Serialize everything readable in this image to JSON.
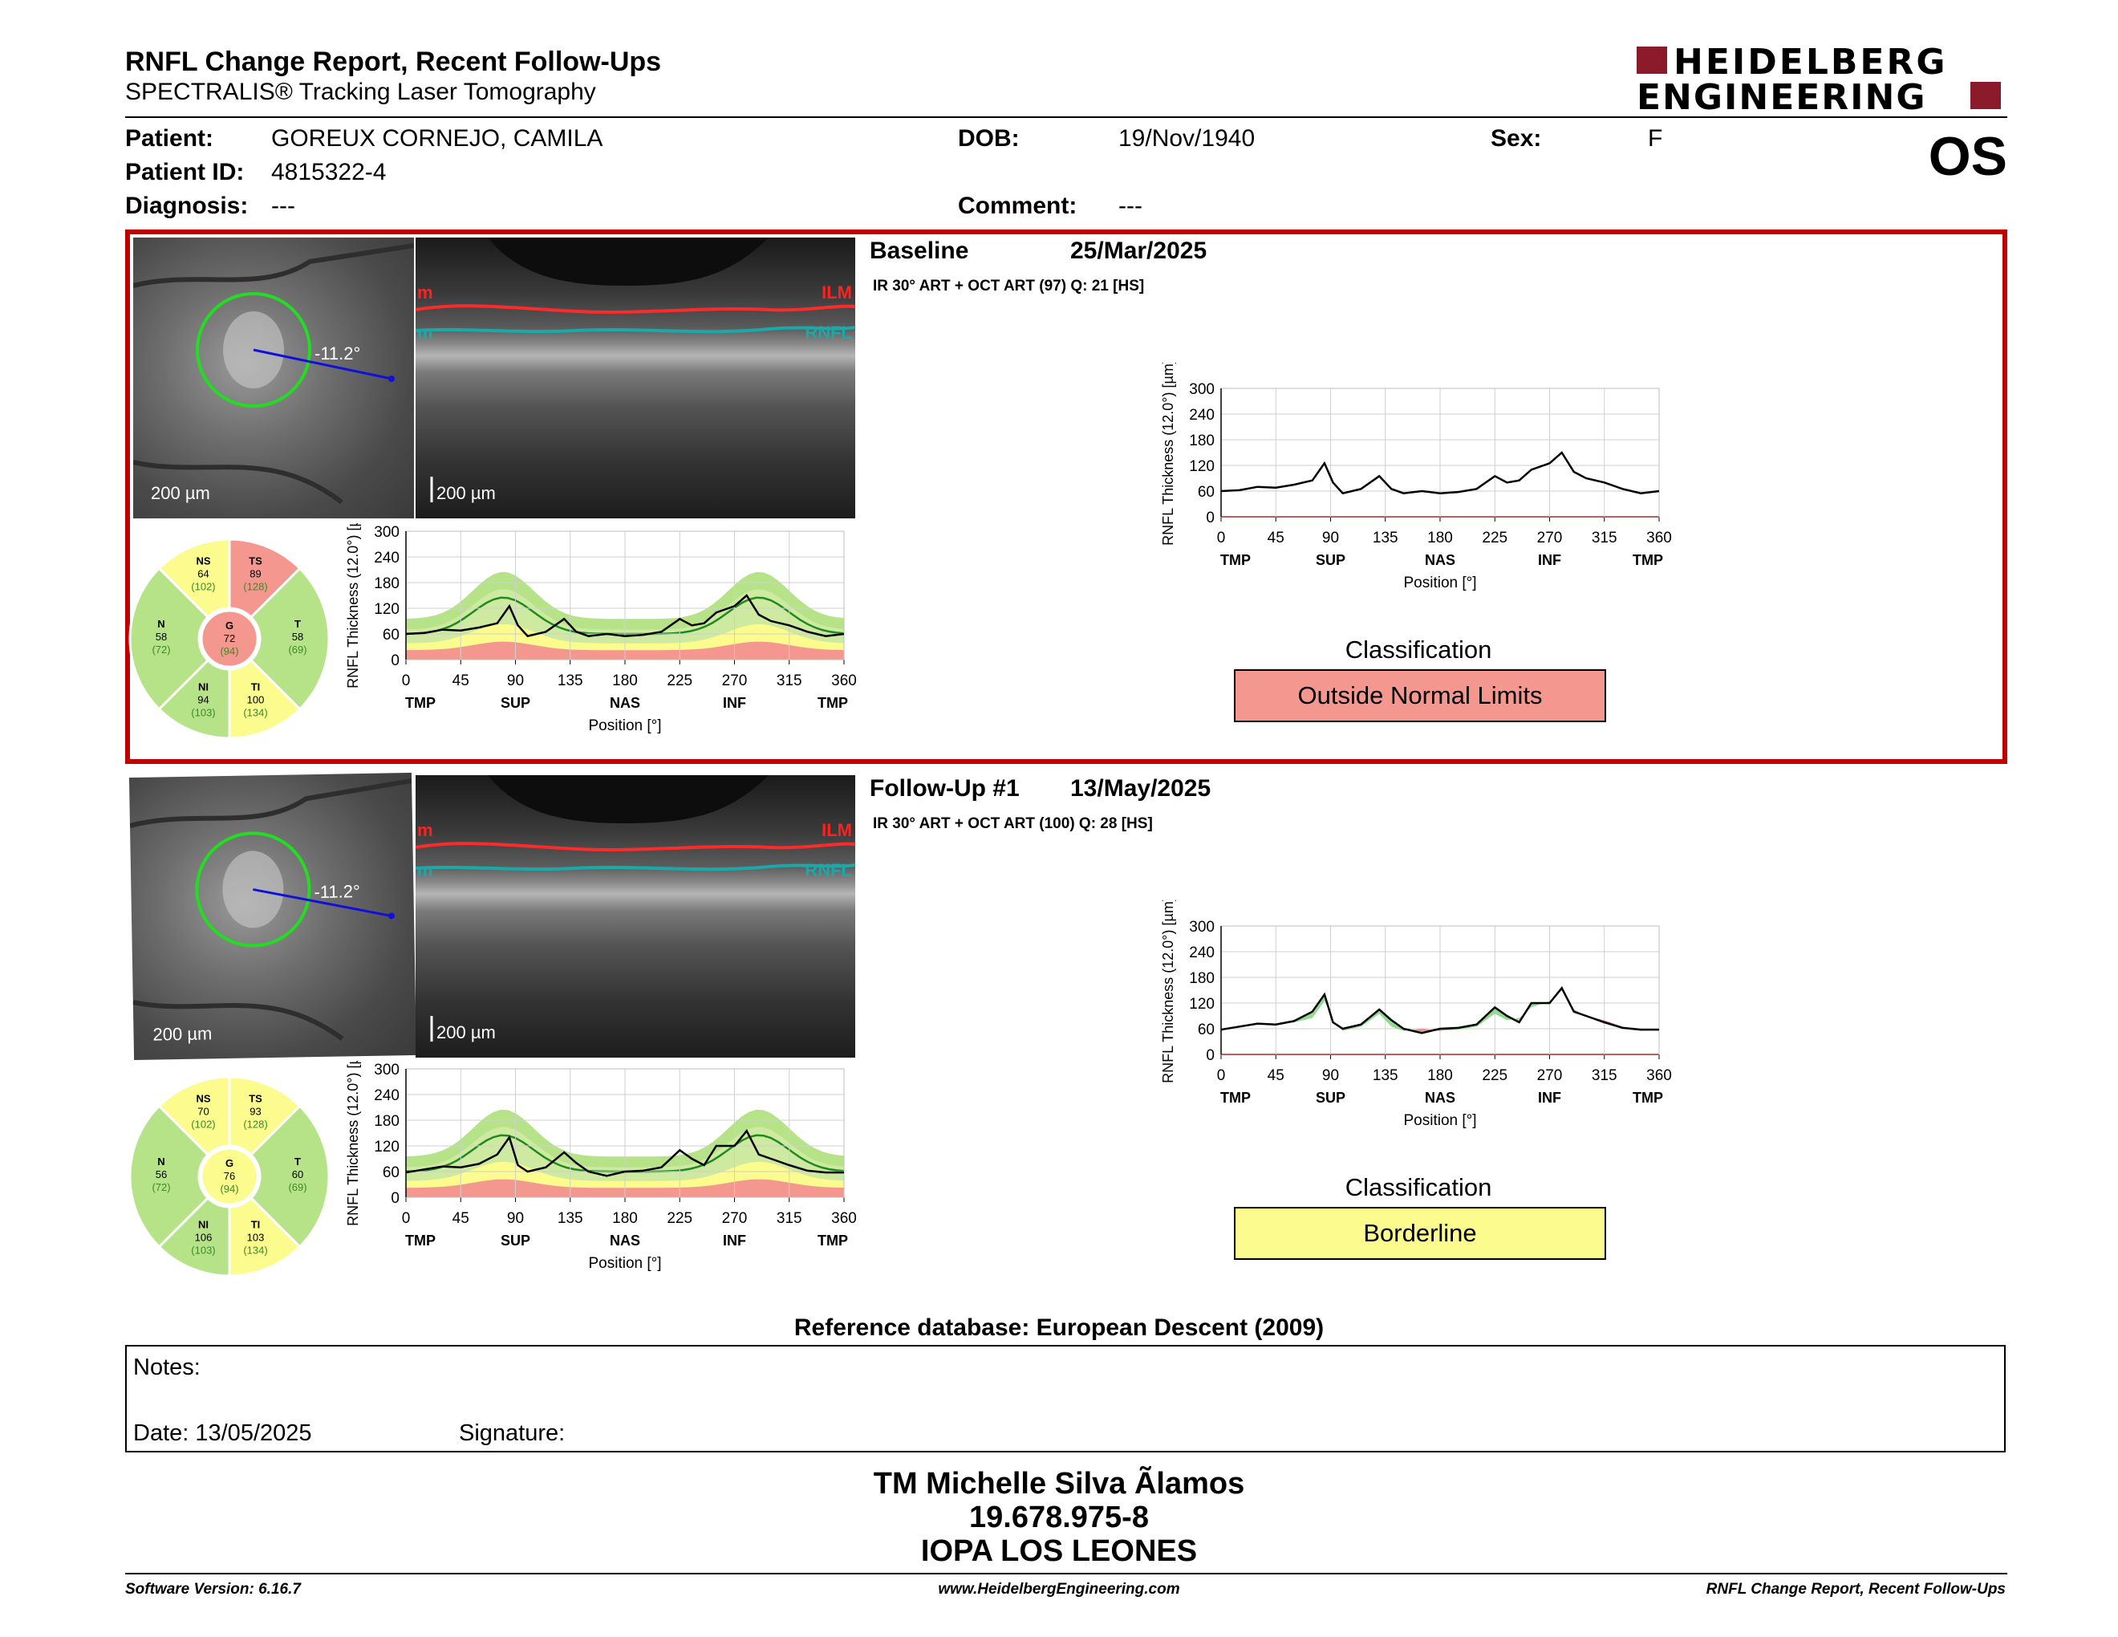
{
  "header": {
    "title": "RNFL Change Report, Recent Follow-Ups",
    "subtitle": "SPECTRALIS® Tracking Laser Tomography",
    "logo_line1": "HEIDELBERG",
    "logo_line2": "ENGINEERING",
    "brand_color": "#8b1a2b"
  },
  "patient": {
    "patient_label": "Patient:",
    "patient_value": "GOREUX CORNEJO, CAMILA",
    "id_label": "Patient ID:",
    "id_value": "4815322-4",
    "diagnosis_label": "Diagnosis:",
    "diagnosis_value": "---",
    "dob_label": "DOB:",
    "dob_value": "19/Nov/1940",
    "comment_label": "Comment:",
    "comment_value": "---",
    "sex_label": "Sex:",
    "sex_value": "F",
    "eye": "OS"
  },
  "exams": [
    {
      "name": "Baseline",
      "date": "25/Mar/2025",
      "scan_info": "IR 30° ART + OCT ART (97) Q: 21 [HS]",
      "angle": "-11.2°",
      "scale_fundus": "200 µm",
      "scale_bscan": "200 µm",
      "ilm": "ILM",
      "rnfl": "RNFL",
      "edge_red": "m",
      "edge_teal": "m",
      "classification_label": "Classification",
      "classification": "Outside Normal Limits",
      "classification_color": "#f4978e",
      "sectors": [
        {
          "name": "NS",
          "value": "64",
          "ref": "(102)",
          "status": "yellow"
        },
        {
          "name": "TS",
          "value": "89",
          "ref": "(128)",
          "status": "red"
        },
        {
          "name": "N",
          "value": "58",
          "ref": "(72)",
          "status": "green"
        },
        {
          "name": "G",
          "value": "72",
          "ref": "(94)",
          "status": "red"
        },
        {
          "name": "T",
          "value": "58",
          "ref": "(69)",
          "status": "green"
        },
        {
          "name": "NI",
          "value": "94",
          "ref": "(103)",
          "status": "green"
        },
        {
          "name": "TI",
          "value": "100",
          "ref": "(134)",
          "status": "yellow"
        }
      ]
    },
    {
      "name": "Follow-Up #1",
      "date": "13/May/2025",
      "scan_info": "IR 30° ART + OCT ART (100) Q: 28 [HS]",
      "angle": "-11.2°",
      "scale_fundus": "200 µm",
      "scale_bscan": "200 µm",
      "ilm": "ILM",
      "rnfl": "RNFL",
      "edge_red": "m",
      "edge_teal": "m",
      "classification_label": "Classification",
      "classification": "Borderline",
      "classification_color": "#fbfb8e",
      "sectors": [
        {
          "name": "NS",
          "value": "70",
          "ref": "(102)",
          "status": "yellow"
        },
        {
          "name": "TS",
          "value": "93",
          "ref": "(128)",
          "status": "yellow"
        },
        {
          "name": "N",
          "value": "56",
          "ref": "(72)",
          "status": "green"
        },
        {
          "name": "G",
          "value": "76",
          "ref": "(94)",
          "status": "yellow"
        },
        {
          "name": "T",
          "value": "60",
          "ref": "(69)",
          "status": "green"
        },
        {
          "name": "NI",
          "value": "106",
          "ref": "(103)",
          "status": "green"
        },
        {
          "name": "TI",
          "value": "103",
          "ref": "(134)",
          "status": "yellow"
        }
      ]
    }
  ],
  "chart_axes": {
    "ylabel": "RNFL Thickness (12.0°) [µm]",
    "xlabel": "Position [°]",
    "yticks": [
      "300",
      "240",
      "180",
      "120",
      "60",
      "0"
    ],
    "xticks": [
      "0",
      "45",
      "90",
      "135",
      "180",
      "225",
      "270",
      "315",
      "360"
    ],
    "xregions": [
      "TMP",
      "SUP",
      "NAS",
      "INF",
      "TMP"
    ]
  },
  "chart_data": [
    {
      "type": "line",
      "ylabel": "RNFL Thickness (12.0°) [µm]",
      "xlabel": "Position [°]",
      "ylim": [
        0,
        300
      ],
      "xlim": [
        0,
        360
      ],
      "x": [
        0,
        15,
        30,
        45,
        60,
        75,
        85,
        92,
        100,
        115,
        130,
        140,
        150,
        165,
        180,
        195,
        210,
        225,
        235,
        245,
        255,
        270,
        280,
        290,
        300,
        315,
        330,
        345,
        360
      ],
      "series": [
        {
          "values": [
            60,
            62,
            70,
            68,
            75,
            85,
            125,
            80,
            55,
            65,
            95,
            65,
            55,
            60,
            55,
            58,
            65,
            95,
            80,
            85,
            110,
            125,
            150,
            105,
            90,
            80,
            65,
            55,
            60
          ]
        }
      ]
    },
    {
      "type": "line",
      "ylabel": "RNFL Thickness (12.0°) [µm]",
      "xlabel": "Position [°]",
      "ylim": [
        0,
        300
      ],
      "xlim": [
        0,
        360
      ],
      "x": [
        0,
        15,
        30,
        45,
        60,
        75,
        85,
        92,
        100,
        115,
        130,
        140,
        150,
        165,
        180,
        195,
        210,
        225,
        235,
        245,
        255,
        270,
        280,
        290,
        300,
        315,
        330,
        345,
        360
      ],
      "series": [
        {
          "values": [
            58,
            65,
            72,
            70,
            78,
            100,
            140,
            75,
            60,
            70,
            105,
            80,
            60,
            50,
            60,
            62,
            70,
            110,
            90,
            75,
            120,
            120,
            155,
            100,
            90,
            75,
            62,
            58,
            58
          ]
        }
      ]
    }
  ],
  "reference": "Reference database: European Descent (2009)",
  "notes": {
    "notes_label": "Notes:",
    "date_label": "Date: 13/05/2025",
    "signature_label": "Signature:"
  },
  "signature_block": {
    "name": "TM Michelle Silva Ãlamos",
    "rut": "19.678.975-8",
    "clinic": "IOPA LOS LEONES"
  },
  "footer": {
    "software": "Software Version: 6.16.7",
    "website": "www.HeidelbergEngineering.com",
    "report": "RNFL Change Report, Recent Follow-Ups"
  }
}
